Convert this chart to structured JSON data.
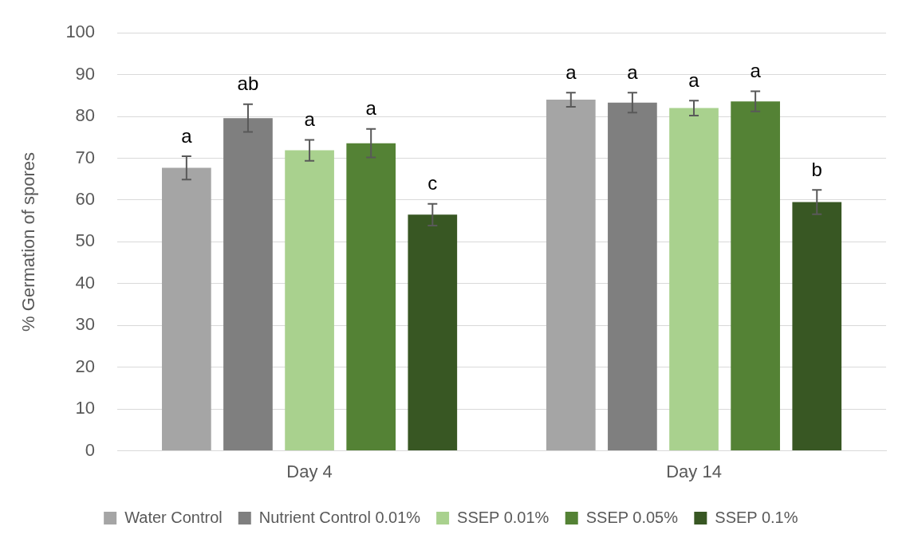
{
  "chart_data": {
    "type": "bar",
    "ylabel": "% Germation of spores",
    "categories": [
      "Day 4",
      "Day 14"
    ],
    "series": [
      {
        "name": "Water Control",
        "color": "#a5a5a5",
        "values": [
          67.7,
          84.0
        ],
        "errors": [
          2.8,
          1.7
        ],
        "value_labels": [
          "a",
          "a"
        ]
      },
      {
        "name": "Nutrient Control 0.01%",
        "color": "#7f7f7f",
        "values": [
          79.6,
          83.3
        ],
        "errors": [
          3.3,
          2.4
        ],
        "value_labels": [
          "ab",
          "a"
        ]
      },
      {
        "name": "SSEP 0.01%",
        "color": "#a9d18e",
        "values": [
          71.9,
          82.0
        ],
        "errors": [
          2.5,
          1.8
        ],
        "value_labels": [
          "a",
          "a"
        ]
      },
      {
        "name": "SSEP 0.05%",
        "color": "#548235",
        "values": [
          73.6,
          83.6
        ],
        "errors": [
          3.4,
          2.4
        ],
        "value_labels": [
          "a",
          "a"
        ]
      },
      {
        "name": "SSEP 0.1%",
        "color": "#385723",
        "values": [
          56.5,
          59.5
        ],
        "errors": [
          2.6,
          2.9
        ],
        "value_labels": [
          "c",
          "b"
        ]
      }
    ],
    "ylim": [
      0,
      100
    ],
    "yticks": [
      0,
      10,
      20,
      30,
      40,
      50,
      60,
      70,
      80,
      90,
      100
    ],
    "grid": "y",
    "legend": "bottom"
  }
}
